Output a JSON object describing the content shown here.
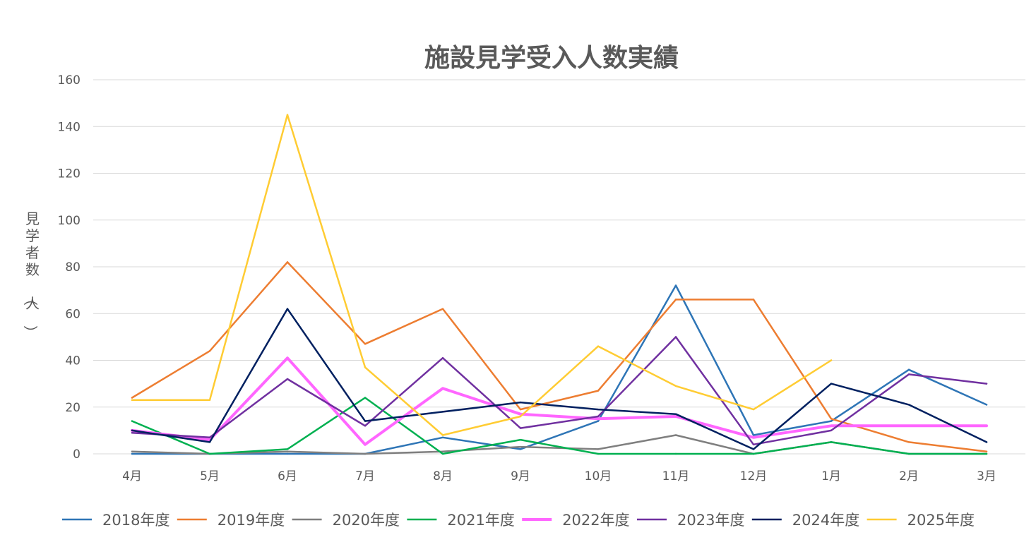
{
  "chart_data": {
    "type": "line",
    "title": "施設見学受入人数実績",
    "xlabel": "",
    "ylabel": "見学者数（人）",
    "ylim": [
      0,
      160
    ],
    "yticks": [
      0,
      20,
      40,
      60,
      80,
      100,
      120,
      140,
      160
    ],
    "grid": true,
    "legend_position": "bottom",
    "categories": [
      "4月",
      "5月",
      "6月",
      "7月",
      "8月",
      "9月",
      "10月",
      "11月",
      "12月",
      "1月",
      "2月",
      "3月"
    ],
    "series": [
      {
        "name": "2018年度",
        "color": "#2e75b6",
        "values": [
          0,
          0,
          0,
          0,
          7,
          2,
          14,
          72,
          8,
          14,
          36,
          21
        ]
      },
      {
        "name": "2019年度",
        "color": "#ed7d31",
        "values": [
          24,
          44,
          82,
          47,
          62,
          19,
          27,
          66,
          66,
          15,
          5,
          1
        ]
      },
      {
        "name": "2020年度",
        "color": "#7f7f7f",
        "values": [
          1,
          0,
          1,
          0,
          1,
          3,
          2,
          8,
          0,
          5,
          0,
          0
        ]
      },
      {
        "name": "2021年度",
        "color": "#00b050",
        "values": [
          14,
          0,
          2,
          24,
          0,
          6,
          0,
          0,
          0,
          5,
          0,
          0
        ]
      },
      {
        "name": "2022年度",
        "color": "#ff66ff",
        "values": [
          10,
          6,
          41,
          4,
          28,
          17,
          15,
          16,
          7,
          12,
          12,
          12
        ]
      },
      {
        "name": "2023年度",
        "color": "#7030a0",
        "values": [
          9,
          7,
          32,
          12,
          41,
          11,
          16,
          50,
          4,
          10,
          34,
          30
        ]
      },
      {
        "name": "2024年度",
        "color": "#002060",
        "values": [
          10,
          5,
          62,
          14,
          18,
          22,
          19,
          17,
          2,
          30,
          21,
          5
        ]
      },
      {
        "name": "2025年度",
        "color": "#ffcc33",
        "values": [
          23,
          23,
          145,
          37,
          8,
          16,
          46,
          29,
          19,
          40,
          null,
          null
        ]
      }
    ]
  }
}
